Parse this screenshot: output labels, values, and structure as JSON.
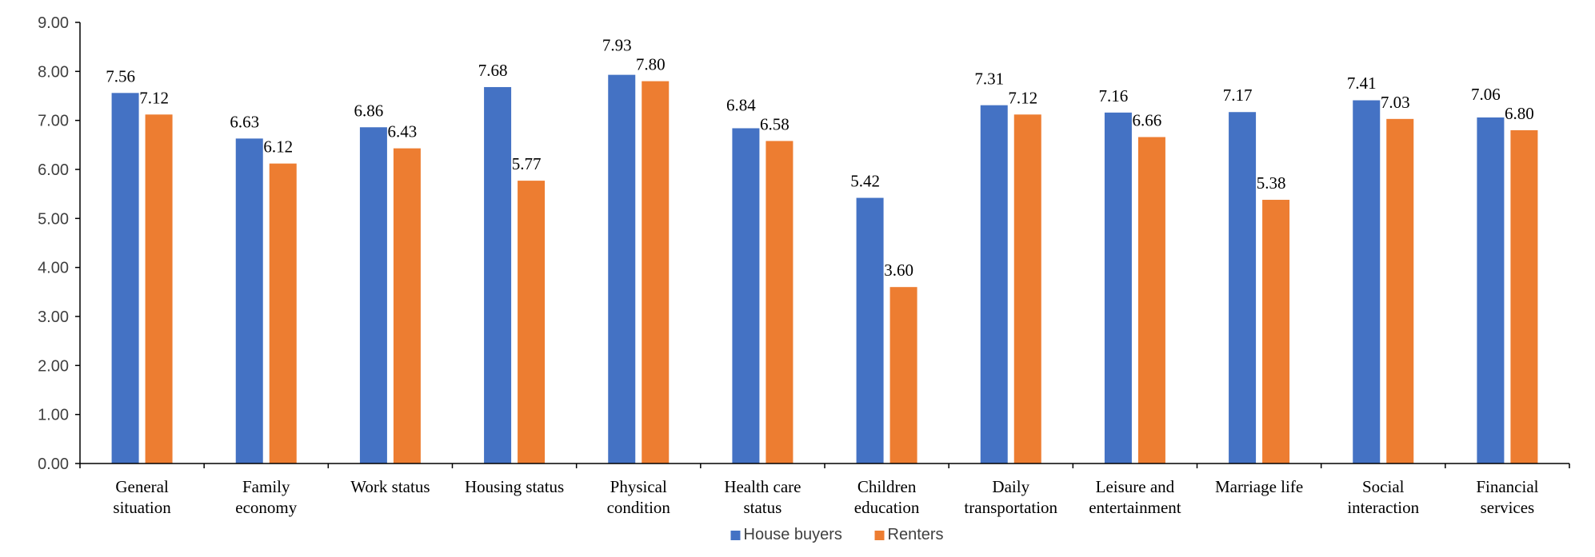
{
  "chart_data": {
    "type": "bar",
    "title": "",
    "xlabel": "",
    "ylabel": "",
    "ylim": [
      0,
      9
    ],
    "yticks": [
      "0.00",
      "1.00",
      "2.00",
      "3.00",
      "4.00",
      "5.00",
      "6.00",
      "7.00",
      "8.00",
      "9.00"
    ],
    "grid": false,
    "legend_position": "bottom-center",
    "categories": [
      [
        "General",
        "situation"
      ],
      [
        "Family",
        "economy"
      ],
      [
        "Work status"
      ],
      [
        "Housing status"
      ],
      [
        "Physical",
        "condition"
      ],
      [
        "Health care",
        "status"
      ],
      [
        "Children",
        "education"
      ],
      [
        "Daily",
        "transportation"
      ],
      [
        "Leisure and",
        "entertainment"
      ],
      [
        "Marriage life"
      ],
      [
        "Social",
        "interaction"
      ],
      [
        "Financial",
        "services"
      ]
    ],
    "series": [
      {
        "name": "House buyers",
        "color": "#4472C4",
        "values": [
          7.56,
          6.63,
          6.86,
          7.68,
          7.93,
          6.84,
          5.42,
          7.31,
          7.16,
          7.17,
          7.41,
          7.06
        ],
        "labels": [
          "7.56",
          "6.63",
          "6.86",
          "7.68",
          "7.93",
          "6.84",
          "5.42",
          "7.31",
          "7.16",
          "7.17",
          "7.41",
          "7.06"
        ]
      },
      {
        "name": "Renters",
        "color": "#ED7D31",
        "values": [
          7.12,
          6.12,
          6.43,
          5.77,
          7.8,
          6.58,
          3.6,
          7.12,
          6.66,
          5.38,
          7.03,
          6.8
        ],
        "labels": [
          "7.12",
          "6.12",
          "6.43",
          "5.77",
          "7.80",
          "6.58",
          "3.60",
          "7.12",
          "6.66",
          "5.38",
          "7.03",
          "6.80"
        ]
      }
    ]
  }
}
